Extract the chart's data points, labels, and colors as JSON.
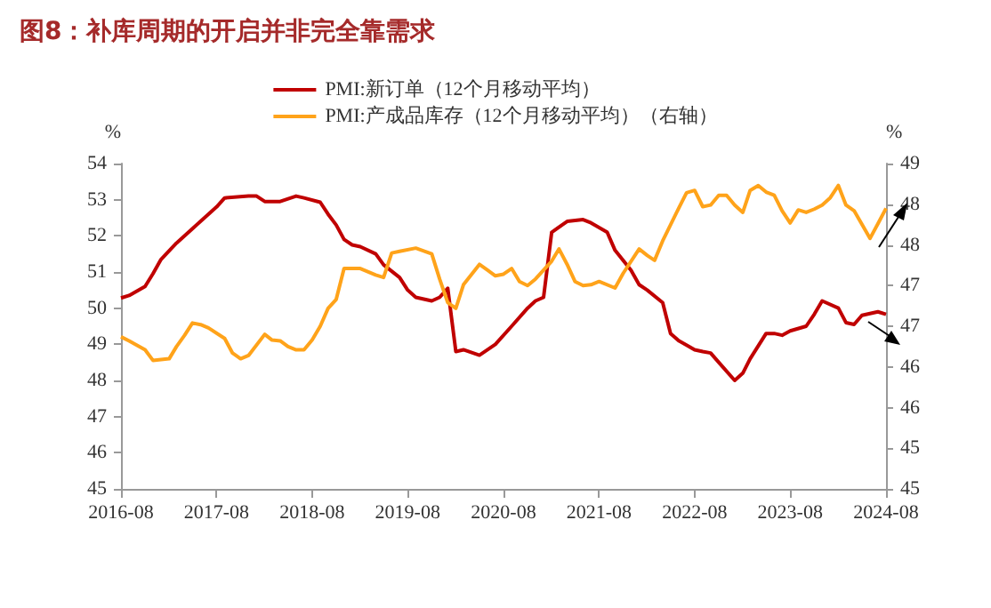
{
  "chart_data": {
    "type": "line",
    "title": "图8：补库周期的开启并非完全靠需求",
    "ylabel": "%",
    "y2label": "%",
    "xlim": [
      "2016-08",
      "2024-08"
    ],
    "xticks": [
      "2016-08",
      "2017-08",
      "2018-08",
      "2019-08",
      "2020-08",
      "2021-08",
      "2022-08",
      "2023-08",
      "2024-08"
    ],
    "ylim": [
      45,
      54
    ],
    "yticks": [
      45,
      46,
      47,
      48,
      49,
      50,
      51,
      52,
      53,
      54
    ],
    "y2lim": [
      45,
      49
    ],
    "y2ticks": [
      45,
      {
        "value": 45.5,
        "label": "45"
      },
      46,
      {
        "value": 46.5,
        "label": "46"
      },
      47,
      {
        "value": 47.5,
        "label": "47"
      },
      48,
      {
        "value": 48.5,
        "label": "48"
      },
      49
    ],
    "grid": false,
    "legend": "top",
    "marker": "none",
    "line_style": "solid",
    "series": [
      {
        "name": "PMI:新订单（12个月移动平均）",
        "color": "#c00000",
        "axis": "y",
        "x": [
          "2016-08",
          "2016-09",
          "2016-11",
          "2016-12",
          "2017-01",
          "2017-03",
          "2017-04",
          "2017-05",
          "2017-07",
          "2017-08",
          "2017-09",
          "2017-12",
          "2018-01",
          "2018-02",
          "2018-04",
          "2018-06",
          "2018-07",
          "2018-09",
          "2018-10",
          "2018-11",
          "2018-12",
          "2019-01",
          "2019-02",
          "2019-04",
          "2019-05",
          "2019-07",
          "2019-08",
          "2019-09",
          "2019-11",
          "2019-12",
          "2020-01",
          "2020-02",
          "2020-03",
          "2020-05",
          "2020-07",
          "2020-09",
          "2020-11",
          "2020-12",
          "2021-01",
          "2021-02",
          "2021-04",
          "2021-06",
          "2021-07",
          "2021-09",
          "2021-10",
          "2021-12",
          "2022-01",
          "2022-02",
          "2022-04",
          "2022-05",
          "2022-06",
          "2022-07",
          "2022-08",
          "2022-09",
          "2022-10",
          "2022-11",
          "2023-01",
          "2023-02",
          "2023-03",
          "2023-05",
          "2023-06",
          "2023-07",
          "2023-08",
          "2023-10",
          "2023-11",
          "2023-12",
          "2024-02",
          "2024-03",
          "2024-04",
          "2024-05",
          "2024-07",
          "2024-08"
        ],
        "values": [
          50.28,
          50.35,
          50.6,
          50.95,
          51.35,
          51.8,
          52.0,
          52.2,
          52.6,
          52.8,
          53.05,
          53.1,
          53.1,
          52.95,
          52.95,
          53.1,
          53.05,
          52.93,
          52.6,
          52.3,
          51.9,
          51.75,
          51.7,
          51.5,
          51.2,
          50.85,
          50.5,
          50.3,
          50.2,
          50.3,
          50.55,
          48.8,
          48.85,
          48.7,
          49.0,
          49.5,
          50.0,
          50.2,
          50.3,
          52.1,
          52.4,
          52.45,
          52.36,
          52.1,
          51.6,
          51.05,
          50.65,
          50.5,
          50.15,
          49.3,
          49.1,
          48.98,
          48.85,
          48.8,
          48.76,
          48.5,
          48.0,
          48.2,
          48.6,
          49.3,
          49.3,
          49.25,
          49.37,
          49.5,
          49.83,
          50.2,
          50.0,
          49.6,
          49.55,
          49.8,
          49.9,
          49.83
        ]
      },
      {
        "name": "PMI:产成品库存（12个月移动平均）（右轴）",
        "color": "#ffa31a",
        "axis": "y2",
        "x": [
          "2016-08",
          "2016-09",
          "2016-11",
          "2016-12",
          "2017-02",
          "2017-03",
          "2017-04",
          "2017-05",
          "2017-06",
          "2017-07",
          "2017-09",
          "2017-10",
          "2017-11",
          "2017-12",
          "2018-02",
          "2018-03",
          "2018-04",
          "2018-05",
          "2018-06",
          "2018-07",
          "2018-08",
          "2018-09",
          "2018-10",
          "2018-11",
          "2018-12",
          "2019-02",
          "2019-04",
          "2019-05",
          "2019-06",
          "2019-07",
          "2019-09",
          "2019-11",
          "2019-12",
          "2020-01",
          "2020-02",
          "2020-03",
          "2020-05",
          "2020-06",
          "2020-07",
          "2020-08",
          "2020-09",
          "2020-10",
          "2020-11",
          "2020-12",
          "2021-02",
          "2021-03",
          "2021-04",
          "2021-05",
          "2021-06",
          "2021-07",
          "2021-08",
          "2021-10",
          "2021-11",
          "2022-01",
          "2022-02",
          "2022-03",
          "2022-04",
          "2022-06",
          "2022-07",
          "2022-08",
          "2022-09",
          "2022-10",
          "2022-11",
          "2022-12",
          "2023-01",
          "2023-02",
          "2023-03",
          "2023-04",
          "2023-05",
          "2023-06",
          "2023-07",
          "2023-08",
          "2023-09",
          "2023-10",
          "2023-11",
          "2023-12",
          "2024-01",
          "2024-02",
          "2024-03",
          "2024-04",
          "2024-06",
          "2024-07",
          "2024-08"
        ],
        "values": [
          46.87,
          46.82,
          46.71,
          46.58,
          46.6,
          46.75,
          46.89,
          47.04,
          47.02,
          46.98,
          46.85,
          46.67,
          46.6,
          46.64,
          46.9,
          46.83,
          46.82,
          46.75,
          46.71,
          46.71,
          46.83,
          47.0,
          47.22,
          47.33,
          47.71,
          47.71,
          47.63,
          47.6,
          47.9,
          47.92,
          47.96,
          47.89,
          47.58,
          47.29,
          47.22,
          47.51,
          47.76,
          47.69,
          47.62,
          47.64,
          47.71,
          47.55,
          47.5,
          47.58,
          47.8,
          47.95,
          47.76,
          47.55,
          47.5,
          47.51,
          47.55,
          47.47,
          47.65,
          47.95,
          47.87,
          47.81,
          48.05,
          48.45,
          48.64,
          48.67,
          48.47,
          48.49,
          48.61,
          48.61,
          48.49,
          48.4,
          48.67,
          48.73,
          48.65,
          48.61,
          48.42,
          48.27,
          48.43,
          48.4,
          48.44,
          48.49,
          48.58,
          48.73,
          48.49,
          48.42,
          48.08,
          48.26,
          48.45
        ]
      }
    ]
  }
}
